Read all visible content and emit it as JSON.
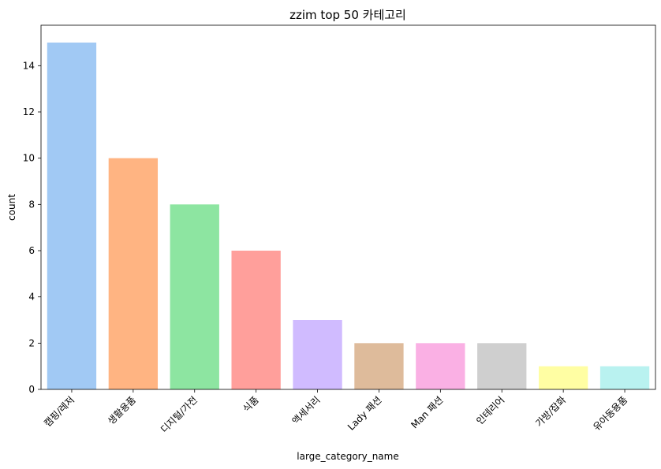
{
  "chart_data": {
    "type": "bar",
    "title": "zzim top 50 카테고리",
    "xlabel": "large_category_name",
    "ylabel": "count",
    "categories": [
      "캠핑/레저",
      "생활용품",
      "디지털/가전",
      "식품",
      "액세서리",
      "Lady 패션",
      "Man 패션",
      "인테리어",
      "가방/잡화",
      "유아동용품"
    ],
    "values": [
      15,
      10,
      8,
      6,
      3,
      2,
      2,
      2,
      1,
      1
    ],
    "colors": [
      "#a1c9f4",
      "#ffb482",
      "#8de5a1",
      "#ff9f9b",
      "#d0bbff",
      "#debb9b",
      "#fab0e4",
      "#cfcfcf",
      "#fffea3",
      "#b9f2f0"
    ],
    "ylim": [
      0,
      15.75
    ],
    "yticks": [
      0,
      2,
      4,
      6,
      8,
      10,
      12,
      14
    ],
    "grid": false,
    "legend": false
  }
}
